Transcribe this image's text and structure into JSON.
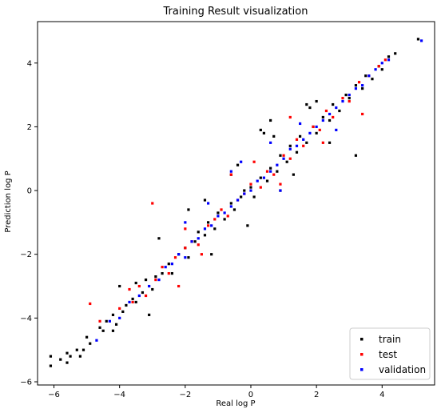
{
  "chart_data": {
    "type": "scatter",
    "title": "Training Result visualization",
    "xlabel": "Real log P",
    "ylabel": "Prediction log P",
    "xlim": [
      -6.5,
      5.6
    ],
    "ylim": [
      -6.1,
      5.3
    ],
    "xticks": [
      -6,
      -4,
      -2,
      0,
      2,
      4
    ],
    "yticks": [
      -6,
      -4,
      -2,
      0,
      2,
      4
    ],
    "grid": false,
    "legend_position": "bottom-right",
    "series": [
      {
        "name": "train",
        "color": "#000000",
        "points": [
          [
            -6.1,
            -5.5
          ],
          [
            -6.1,
            -5.2
          ],
          [
            -5.8,
            -5.3
          ],
          [
            -5.6,
            -5.4
          ],
          [
            -5.6,
            -5.1
          ],
          [
            -5.5,
            -5.2
          ],
          [
            -5.3,
            -5.0
          ],
          [
            -5.2,
            -5.2
          ],
          [
            -5.1,
            -5.0
          ],
          [
            -5.0,
            -4.6
          ],
          [
            -4.9,
            -4.8
          ],
          [
            -4.6,
            -4.3
          ],
          [
            -4.5,
            -4.4
          ],
          [
            -4.4,
            -4.1
          ],
          [
            -4.2,
            -3.9
          ],
          [
            -4.1,
            -4.2
          ],
          [
            -3.9,
            -3.8
          ],
          [
            -3.8,
            -3.6
          ],
          [
            -3.6,
            -3.4
          ],
          [
            -3.5,
            -3.5
          ],
          [
            -3.3,
            -3.2
          ],
          [
            -3.2,
            -2.8
          ],
          [
            -3.0,
            -3.1
          ],
          [
            -2.9,
            -2.7
          ],
          [
            -2.7,
            -2.6
          ],
          [
            -2.5,
            -2.3
          ],
          [
            -2.4,
            -2.6
          ],
          [
            -2.2,
            -2.0
          ],
          [
            -2.0,
            -1.8
          ],
          [
            -1.9,
            -2.1
          ],
          [
            -1.7,
            -1.6
          ],
          [
            -1.6,
            -1.3
          ],
          [
            -1.4,
            -1.4
          ],
          [
            -1.3,
            -1.0
          ],
          [
            -1.1,
            -1.2
          ],
          [
            -1.0,
            -0.7
          ],
          [
            -0.8,
            -0.9
          ],
          [
            -0.6,
            -0.4
          ],
          [
            -0.5,
            -0.6
          ],
          [
            -0.3,
            -0.2
          ],
          [
            -0.2,
            0.0
          ],
          [
            0.0,
            0.1
          ],
          [
            0.1,
            -0.2
          ],
          [
            0.3,
            0.4
          ],
          [
            0.5,
            0.3
          ],
          [
            0.6,
            0.7
          ],
          [
            0.8,
            0.6
          ],
          [
            0.9,
            1.1
          ],
          [
            1.1,
            0.9
          ],
          [
            1.2,
            1.4
          ],
          [
            1.4,
            1.2
          ],
          [
            1.5,
            1.7
          ],
          [
            1.7,
            1.5
          ],
          [
            1.9,
            2.0
          ],
          [
            2.0,
            1.8
          ],
          [
            2.2,
            2.3
          ],
          [
            2.4,
            2.2
          ],
          [
            2.5,
            2.7
          ],
          [
            2.7,
            2.5
          ],
          [
            2.9,
            3.0
          ],
          [
            3.0,
            2.9
          ],
          [
            3.2,
            3.3
          ],
          [
            3.4,
            3.2
          ],
          [
            3.5,
            3.6
          ],
          [
            3.7,
            3.5
          ],
          [
            3.9,
            3.9
          ],
          [
            4.0,
            3.8
          ],
          [
            4.2,
            4.2
          ],
          [
            4.4,
            4.3
          ],
          [
            5.1,
            4.75
          ],
          [
            0.4,
            1.8
          ],
          [
            0.3,
            1.9
          ],
          [
            0.7,
            1.7
          ],
          [
            -0.4,
            0.8
          ],
          [
            -0.6,
            0.5
          ],
          [
            -1.9,
            -0.6
          ],
          [
            -1.4,
            -0.3
          ],
          [
            3.2,
            1.1
          ],
          [
            1.7,
            2.7
          ],
          [
            1.8,
            2.6
          ],
          [
            2.0,
            2.8
          ],
          [
            2.4,
            1.5
          ],
          [
            -2.8,
            -1.5
          ],
          [
            -3.5,
            -2.9
          ],
          [
            -4.0,
            -3.0
          ],
          [
            -3.1,
            -3.9
          ],
          [
            -4.2,
            -4.4
          ],
          [
            -1.2,
            -2.0
          ],
          [
            0.9,
            0.0
          ],
          [
            1.3,
            0.5
          ],
          [
            -0.1,
            -1.1
          ],
          [
            0.6,
            2.2
          ]
        ]
      },
      {
        "name": "test",
        "color": "#ff0000",
        "points": [
          [
            -4.9,
            -3.55
          ],
          [
            -4.6,
            -4.1
          ],
          [
            -4.0,
            -3.7
          ],
          [
            -3.6,
            -3.5
          ],
          [
            -3.4,
            -3.0
          ],
          [
            -3.2,
            -3.3
          ],
          [
            -2.9,
            -2.8
          ],
          [
            -2.7,
            -2.4
          ],
          [
            -2.5,
            -2.6
          ],
          [
            -2.3,
            -2.1
          ],
          [
            -2.0,
            -1.8
          ],
          [
            -1.8,
            -1.6
          ],
          [
            -1.6,
            -1.7
          ],
          [
            -1.3,
            -1.1
          ],
          [
            -1.1,
            -0.9
          ],
          [
            -0.9,
            -0.6
          ],
          [
            -0.7,
            -0.8
          ],
          [
            -0.4,
            -0.3
          ],
          [
            -0.2,
            -0.1
          ],
          [
            0.0,
            0.2
          ],
          [
            0.3,
            0.1
          ],
          [
            0.5,
            0.6
          ],
          [
            0.7,
            0.5
          ],
          [
            1.0,
            1.1
          ],
          [
            1.2,
            1.0
          ],
          [
            1.4,
            1.6
          ],
          [
            1.6,
            1.4
          ],
          [
            1.9,
            2.0
          ],
          [
            2.1,
            1.9
          ],
          [
            2.3,
            2.5
          ],
          [
            2.5,
            2.3
          ],
          [
            2.8,
            2.9
          ],
          [
            3.0,
            2.8
          ],
          [
            3.3,
            3.4
          ],
          [
            3.6,
            3.6
          ],
          [
            3.9,
            3.9
          ],
          [
            4.1,
            4.1
          ],
          [
            -3.0,
            -0.4
          ],
          [
            -2.0,
            -1.2
          ],
          [
            -2.2,
            -3.0
          ],
          [
            2.2,
            1.5
          ],
          [
            1.2,
            2.3
          ],
          [
            -0.6,
            0.5
          ],
          [
            0.1,
            0.9
          ],
          [
            -1.5,
            -2.0
          ],
          [
            -3.7,
            -3.1
          ],
          [
            3.4,
            2.4
          ],
          [
            0.9,
            0.2
          ]
        ]
      },
      {
        "name": "validation",
        "color": "#0000ff",
        "points": [
          [
            -4.7,
            -4.7
          ],
          [
            -4.3,
            -4.1
          ],
          [
            -4.0,
            -4.0
          ],
          [
            -3.7,
            -3.5
          ],
          [
            -3.4,
            -3.3
          ],
          [
            -3.1,
            -3.0
          ],
          [
            -2.8,
            -2.8
          ],
          [
            -2.6,
            -2.4
          ],
          [
            -2.4,
            -2.3
          ],
          [
            -2.2,
            -2.0
          ],
          [
            -2.0,
            -2.1
          ],
          [
            -1.8,
            -1.6
          ],
          [
            -1.6,
            -1.5
          ],
          [
            -1.4,
            -1.2
          ],
          [
            -1.2,
            -1.1
          ],
          [
            -1.0,
            -0.8
          ],
          [
            -0.8,
            -0.7
          ],
          [
            -0.6,
            -0.5
          ],
          [
            -0.4,
            -0.3
          ],
          [
            -0.2,
            -0.1
          ],
          [
            0.0,
            0.0
          ],
          [
            0.2,
            0.3
          ],
          [
            0.4,
            0.4
          ],
          [
            0.6,
            0.6
          ],
          [
            0.8,
            0.8
          ],
          [
            1.0,
            1.0
          ],
          [
            1.2,
            1.3
          ],
          [
            1.4,
            1.4
          ],
          [
            1.6,
            1.6
          ],
          [
            1.8,
            1.8
          ],
          [
            2.0,
            2.0
          ],
          [
            2.2,
            2.2
          ],
          [
            2.4,
            2.4
          ],
          [
            2.6,
            2.6
          ],
          [
            2.8,
            2.8
          ],
          [
            3.0,
            3.0
          ],
          [
            3.2,
            3.2
          ],
          [
            3.4,
            3.3
          ],
          [
            3.6,
            3.6
          ],
          [
            3.8,
            3.8
          ],
          [
            4.0,
            4.0
          ],
          [
            4.2,
            4.1
          ],
          [
            5.2,
            4.7
          ],
          [
            -0.6,
            0.6
          ],
          [
            0.6,
            1.5
          ],
          [
            1.5,
            2.1
          ],
          [
            -1.3,
            -0.4
          ],
          [
            -0.3,
            0.9
          ],
          [
            0.9,
            0.0
          ],
          [
            -2.0,
            -1.0
          ],
          [
            2.6,
            1.9
          ]
        ]
      }
    ]
  }
}
